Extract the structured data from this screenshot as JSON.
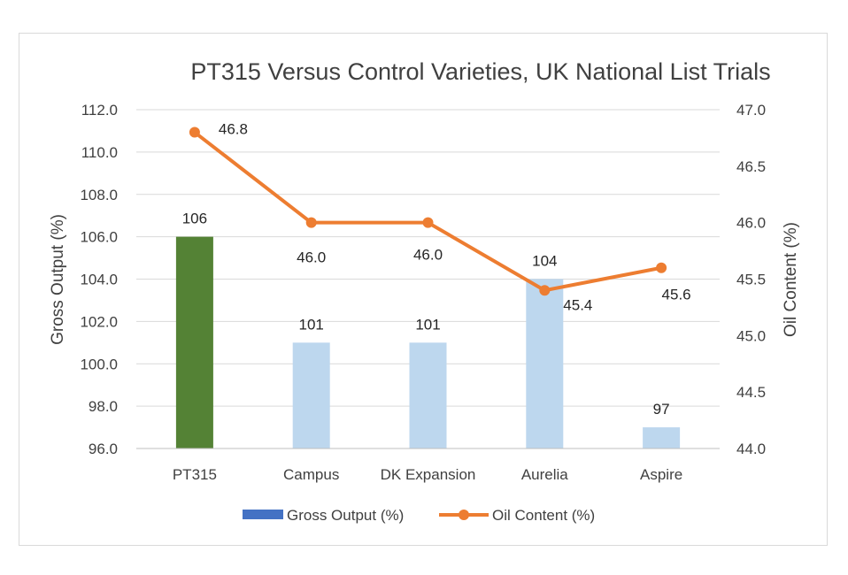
{
  "chart_data": {
    "type": "bar",
    "title": "PT315 Versus Control Varieties, UK National List Trials",
    "categories": [
      "PT315",
      "Campus",
      "DK Expansion",
      "Aurelia",
      "Aspire"
    ],
    "ylabel": "Gross Output (%)",
    "y2label": "Oil Content (%)",
    "ylim": [
      96.0,
      112.0
    ],
    "y2lim": [
      44.0,
      47.0
    ],
    "yticks": [
      "96.0",
      "98.0",
      "100.0",
      "102.0",
      "104.0",
      "106.0",
      "108.0",
      "110.0",
      "112.0"
    ],
    "y2ticks": [
      "44.0",
      "44.5",
      "45.0",
      "45.5",
      "46.0",
      "46.5",
      "47.0"
    ],
    "grid": true,
    "legend_position": "bottom",
    "series": [
      {
        "name": "Gross Output (%)",
        "type": "bar",
        "axis": "left",
        "values": [
          106,
          101,
          101,
          104,
          97
        ],
        "labels": [
          "106",
          "101",
          "101",
          "104",
          "97"
        ],
        "colors": [
          "#548235",
          "#bdd7ee",
          "#bdd7ee",
          "#bdd7ee",
          "#bdd7ee"
        ],
        "legend_color": "#4472c4"
      },
      {
        "name": "Oil Content (%)",
        "type": "line",
        "axis": "right",
        "values": [
          46.8,
          46.0,
          46.0,
          45.4,
          45.6
        ],
        "labels": [
          "46.8",
          "46.0",
          "46.0",
          "45.4",
          "45.6"
        ],
        "color": "#ed7d31"
      }
    ]
  }
}
